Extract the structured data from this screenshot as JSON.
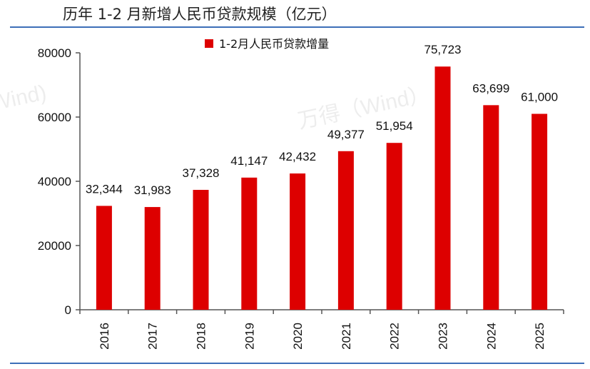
{
  "title": "历年 1-2 月新增人民币贷款规模（亿元）",
  "watermarks": [
    "Wind)",
    "万得（Wind）"
  ],
  "colors": {
    "bar": "#dd0000",
    "rule": "#3d6fb8",
    "axis": "#555555"
  },
  "chart_data": {
    "type": "bar",
    "title": "历年 1-2 月新增人民币贷款规模（亿元）",
    "xlabel": "",
    "ylabel": "",
    "categories": [
      "2016",
      "2017",
      "2018",
      "2019",
      "2020",
      "2021",
      "2022",
      "2023",
      "2024",
      "2025"
    ],
    "series": [
      {
        "name": "1-2月人民币贷款增量",
        "values": [
          32344,
          31983,
          37328,
          41147,
          42432,
          49377,
          51954,
          75723,
          63699,
          61000
        ],
        "labels": [
          "32,344",
          "31,983",
          "37,328",
          "41,147",
          "42,432",
          "49,377",
          "51,954",
          "75,723",
          "63,699",
          "61,000"
        ]
      }
    ],
    "ylim": [
      0,
      80000
    ],
    "yticks": [
      0,
      20000,
      40000,
      60000,
      80000
    ],
    "ytick_labels": [
      "0",
      "20000",
      "40000",
      "60000",
      "80000"
    ],
    "legend": "top-center",
    "grid": false
  }
}
